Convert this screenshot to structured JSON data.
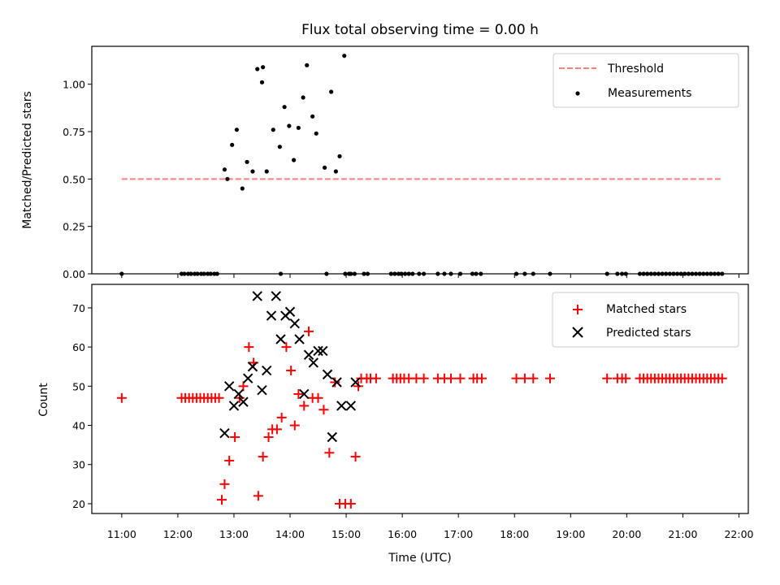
{
  "chart_data": [
    {
      "panel": "top",
      "type": "scatter",
      "title": "Flux total observing time = 0.00 h",
      "xlabel": "",
      "ylabel": "Matched/Predicted stars",
      "xlim": [
        "10:28",
        "22:10"
      ],
      "ylim": [
        0,
        1.2
      ],
      "yticks": [
        "0.00",
        "0.25",
        "0.50",
        "0.75",
        "1.00"
      ],
      "grid": false,
      "legend_position": "top-right",
      "colors": {
        "threshold": "#ff7f7f",
        "measurements": "#000000"
      },
      "threshold": {
        "name": "Threshold",
        "x": [
          "11:00",
          "21:42"
        ],
        "y": 0.5
      },
      "series": [
        {
          "name": "Measurements",
          "x": [
            "12:50",
            "12:53",
            "12:58",
            "13:03",
            "13:09",
            "13:14",
            "13:20",
            "13:25",
            "13:30",
            "13:31",
            "13:35",
            "13:42",
            "13:49",
            "13:54",
            "13:59",
            "14:04",
            "14:09",
            "14:14",
            "14:18",
            "14:24",
            "14:28",
            "14:37",
            "14:44",
            "14:49",
            "14:53",
            "14:58",
            "15:05",
            "15:09"
          ],
          "y": [
            0.55,
            0.5,
            0.68,
            0.76,
            0.45,
            0.59,
            0.54,
            1.08,
            1.01,
            1.09,
            0.54,
            0.76,
            0.67,
            0.88,
            0.78,
            0.6,
            0.77,
            0.93,
            1.1,
            0.83,
            0.74,
            0.56,
            0.96,
            0.54,
            0.62,
            1.15,
            0.0,
            0.0
          ]
        },
        {
          "name": "Measurements (zero)",
          "x": [
            "11:00",
            "12:04",
            "12:07",
            "12:11",
            "12:14",
            "12:18",
            "12:21",
            "12:25",
            "12:28",
            "12:32",
            "12:35",
            "12:39",
            "12:42",
            "13:50",
            "14:39",
            "14:59",
            "15:03",
            "15:19",
            "15:23",
            "15:48",
            "15:52",
            "15:56",
            "15:59",
            "16:03",
            "16:07",
            "16:11",
            "16:18",
            "16:23",
            "16:38",
            "16:45",
            "16:52",
            "17:02",
            "17:15",
            "17:19",
            "17:24",
            "18:02",
            "18:11",
            "18:20",
            "18:38",
            "19:39",
            "19:50",
            "19:55",
            "19:59",
            "20:14",
            "20:18",
            "20:22",
            "20:26",
            "20:30",
            "20:34",
            "20:38",
            "20:42",
            "20:46",
            "20:50",
            "20:54",
            "20:58",
            "21:02",
            "21:06",
            "21:10",
            "21:14",
            "21:18",
            "21:22",
            "21:26",
            "21:30",
            "21:34",
            "21:38",
            "21:42"
          ],
          "y": [
            0,
            0,
            0,
            0,
            0,
            0,
            0,
            0,
            0,
            0,
            0,
            0,
            0,
            0,
            0,
            0,
            0,
            0,
            0,
            0,
            0,
            0,
            0,
            0,
            0,
            0,
            0,
            0,
            0,
            0,
            0,
            0,
            0,
            0,
            0,
            0,
            0,
            0,
            0,
            0,
            0,
            0,
            0,
            0,
            0,
            0,
            0,
            0,
            0,
            0,
            0,
            0,
            0,
            0,
            0,
            0,
            0,
            0,
            0,
            0,
            0,
            0,
            0,
            0,
            0,
            0
          ]
        }
      ]
    },
    {
      "panel": "bottom",
      "type": "scatter",
      "title": "",
      "xlabel": "Time (UTC)",
      "ylabel": "Count",
      "xlim": [
        "10:28",
        "22:10"
      ],
      "ylim": [
        17.5,
        76
      ],
      "xticks": [
        "11:00",
        "12:00",
        "13:00",
        "14:00",
        "15:00",
        "16:00",
        "17:00",
        "18:00",
        "19:00",
        "20:00",
        "21:00",
        "22:00"
      ],
      "yticks": [
        "20",
        "30",
        "40",
        "50",
        "60",
        "70"
      ],
      "grid": false,
      "legend_position": "top-right",
      "colors": {
        "matched": "#ff0000",
        "predicted": "#000000"
      },
      "series": [
        {
          "name": "Matched stars",
          "marker": "plus",
          "x": [
            "11:00",
            "12:04",
            "12:08",
            "12:12",
            "12:16",
            "12:20",
            "12:24",
            "12:28",
            "12:32",
            "12:36",
            "12:40",
            "12:44",
            "12:47",
            "12:50",
            "12:55",
            "13:01",
            "13:06",
            "13:10",
            "13:16",
            "13:21",
            "13:26",
            "13:31",
            "13:37",
            "13:41",
            "13:46",
            "13:51",
            "13:56",
            "14:01",
            "14:05",
            "14:09",
            "14:15",
            "14:20",
            "14:24",
            "14:30",
            "14:36",
            "14:42",
            "14:48",
            "14:53",
            "14:59",
            "15:05",
            "15:10",
            "15:13",
            "15:16",
            "15:22",
            "15:26",
            "15:32",
            "15:50",
            "15:54",
            "15:58",
            "16:02",
            "16:07",
            "16:15",
            "16:23",
            "16:38",
            "16:45",
            "16:52",
            "17:02",
            "17:16",
            "17:20",
            "17:25",
            "18:02",
            "18:11",
            "18:20",
            "18:38",
            "19:39",
            "19:50",
            "19:55",
            "19:59",
            "20:14",
            "20:18",
            "20:22",
            "20:26",
            "20:30",
            "20:34",
            "20:38",
            "20:42",
            "20:46",
            "20:50",
            "20:54",
            "20:58",
            "21:02",
            "21:06",
            "21:10",
            "21:14",
            "21:18",
            "21:22",
            "21:26",
            "21:30",
            "21:34",
            "21:38",
            "21:42"
          ],
          "y": [
            47,
            47,
            47,
            47,
            47,
            47,
            47,
            47,
            47,
            47,
            47,
            47,
            21,
            25,
            31,
            37,
            47,
            50,
            60,
            56,
            22,
            32,
            37,
            39,
            39,
            42,
            60,
            54,
            40,
            48,
            45,
            64,
            47,
            47,
            44,
            33,
            51,
            20,
            20,
            20,
            32,
            50,
            52,
            52,
            52,
            52,
            52,
            52,
            52,
            52,
            52,
            52,
            52,
            52,
            52,
            52,
            52,
            52,
            52,
            52,
            52,
            52,
            52,
            52,
            52,
            52,
            52,
            52,
            52,
            52,
            52,
            52,
            52,
            52,
            52,
            52,
            52,
            52,
            52,
            52,
            52,
            52,
            52,
            52,
            52,
            52,
            52,
            52,
            52,
            52,
            52
          ]
        },
        {
          "name": "Predicted stars",
          "marker": "x",
          "x": [
            "12:50",
            "12:55",
            "13:00",
            "13:05",
            "13:10",
            "13:15",
            "13:20",
            "13:25",
            "13:30",
            "13:35",
            "13:40",
            "13:45",
            "13:50",
            "13:55",
            "14:00",
            "14:05",
            "14:10",
            "14:15",
            "14:20",
            "14:25",
            "14:30",
            "14:35",
            "14:40",
            "14:45",
            "14:50",
            "14:55",
            "15:05",
            "15:10"
          ],
          "y": [
            38,
            50,
            45,
            48,
            46,
            52,
            55,
            73,
            49,
            54,
            68,
            73,
            62,
            68,
            69,
            66,
            62,
            48,
            58,
            56,
            59,
            59,
            53,
            37,
            51,
            45,
            45,
            51
          ]
        }
      ]
    }
  ]
}
